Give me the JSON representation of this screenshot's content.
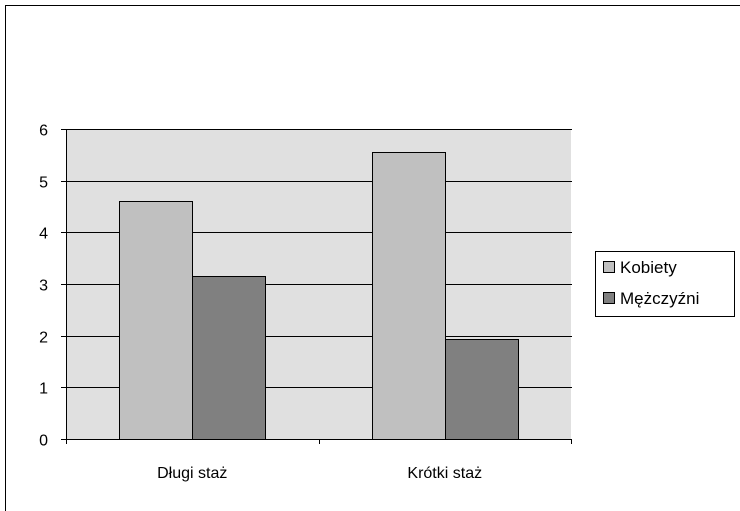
{
  "colors": {
    "plot_background": "#e0e0e0",
    "series_kobiety": "#c0c0c0",
    "series_mezczyzni": "#808080",
    "gridline": "#000000"
  },
  "chart_data": {
    "type": "bar",
    "title": "",
    "xlabel": "",
    "ylabel": "",
    "categories": [
      "Długi staż",
      "Krótki staż"
    ],
    "series": [
      {
        "name": "Kobiety",
        "values": [
          4.6,
          5.55
        ]
      },
      {
        "name": "Mężczyźni",
        "values": [
          3.15,
          1.93
        ]
      }
    ],
    "ylim": [
      0,
      6
    ],
    "yticks": [
      "0",
      "1",
      "2",
      "3",
      "4",
      "5",
      "6"
    ],
    "grid": true,
    "legend_position": "right"
  }
}
